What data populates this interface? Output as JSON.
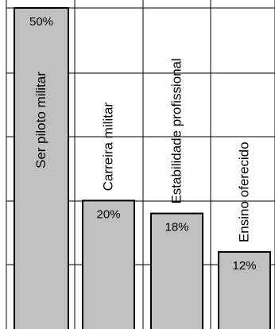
{
  "chart_data": {
    "type": "bar",
    "categories": [
      "Ser piloto militar",
      "Carreira militar",
      "Estabilidade profissional",
      "Ensino oferecido"
    ],
    "values": [
      50,
      20,
      18,
      12
    ],
    "value_labels": [
      "50%",
      "20%",
      "18%",
      "12%"
    ],
    "ylim": [
      0,
      50
    ],
    "grid": true,
    "legend": "none",
    "colors": {
      "bar": "#c0c0c0",
      "bar_outline": "#000000",
      "grid": "#000000",
      "background": "#ffffff"
    }
  }
}
